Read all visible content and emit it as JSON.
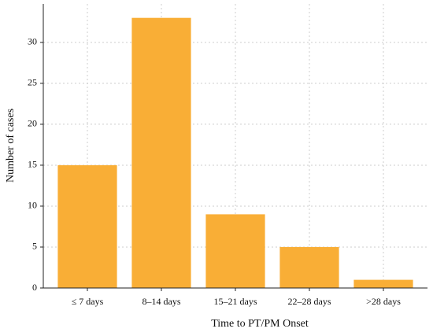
{
  "chart_data": {
    "type": "bar",
    "x_label": "Time to PT/PM Onset",
    "y_label": "Number of cases",
    "categories": [
      "≤ 7 days",
      "8–14 days",
      "15–21 days",
      "22–28 days",
      ">28 days"
    ],
    "values": [
      15,
      33,
      9,
      5,
      1
    ],
    "color": "#f9ae36",
    "ylim": [
      0,
      34.7
    ],
    "yticks": [
      0,
      5,
      10,
      15,
      20,
      25,
      30
    ],
    "grid": true
  }
}
